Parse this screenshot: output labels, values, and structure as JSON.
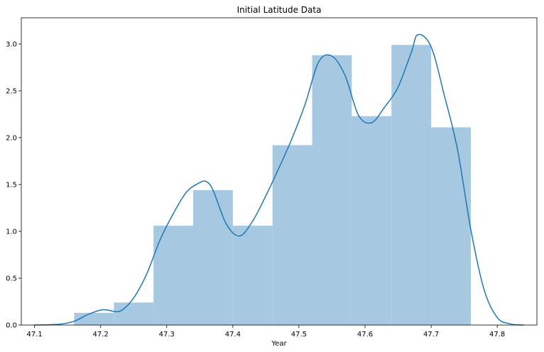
{
  "chart_data": {
    "type": "histogram",
    "title": "Initial Latitude Data",
    "xlabel": "Year",
    "ylabel": "",
    "xlim": [
      47.08,
      47.86
    ],
    "ylim": [
      0,
      3.28
    ],
    "grid": false,
    "x_ticks": [
      "47.1",
      "47.2",
      "47.3",
      "47.4",
      "47.5",
      "47.6",
      "47.7",
      "47.8"
    ],
    "y_ticks": [
      "0.0",
      "0.5",
      "1.0",
      "1.5",
      "2.0",
      "2.5",
      "3.0"
    ],
    "bin_edges": [
      47.16,
      47.22,
      47.28,
      47.34,
      47.4,
      47.46,
      47.52,
      47.58,
      47.64,
      47.7,
      47.76
    ],
    "bin_heights": [
      0.13,
      0.24,
      1.06,
      1.44,
      1.06,
      1.92,
      2.88,
      2.23,
      2.99,
      2.11
    ],
    "bar_color": "#a6c8e0",
    "kde_color": "#1f77b4",
    "kde": {
      "x": [
        47.1,
        47.12,
        47.14,
        47.16,
        47.18,
        47.2,
        47.21,
        47.23,
        47.25,
        47.27,
        47.29,
        47.31,
        47.33,
        47.35,
        47.36,
        47.37,
        47.39,
        47.41,
        47.43,
        47.45,
        47.47,
        47.49,
        47.51,
        47.53,
        47.55,
        47.57,
        47.59,
        47.61,
        47.63,
        47.65,
        47.67,
        47.68,
        47.7,
        47.72,
        47.74,
        47.76,
        47.78,
        47.8,
        47.82,
        47.84
      ],
      "y": [
        0.0,
        0.003,
        0.01,
        0.04,
        0.11,
        0.16,
        0.16,
        0.15,
        0.29,
        0.55,
        0.91,
        1.19,
        1.42,
        1.52,
        1.53,
        1.44,
        1.08,
        0.95,
        1.11,
        1.38,
        1.68,
        2.0,
        2.37,
        2.81,
        2.87,
        2.66,
        2.24,
        2.16,
        2.33,
        2.54,
        2.91,
        3.1,
        2.97,
        2.45,
        1.87,
        1.02,
        0.38,
        0.08,
        0.012,
        0.0
      ]
    }
  }
}
